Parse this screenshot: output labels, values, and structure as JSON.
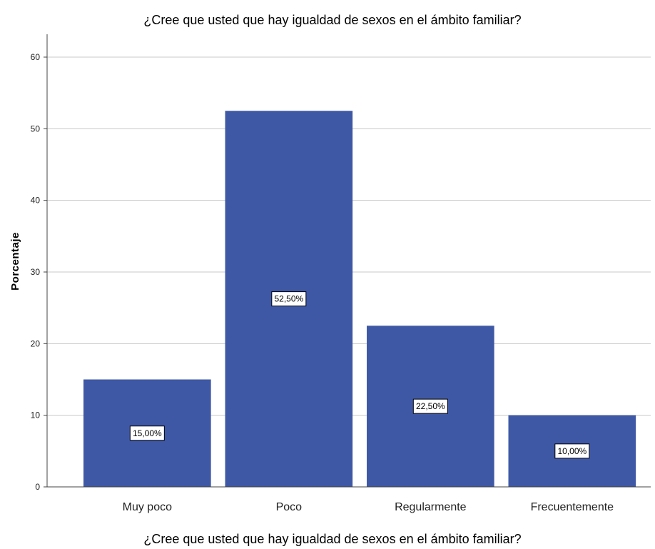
{
  "chart_data": {
    "type": "bar",
    "title": "¿Cree que usted que hay igualdad de sexos en el ámbito familiar?",
    "xlabel": "¿Cree que usted que hay igualdad de sexos en el ámbito familiar?",
    "ylabel": "Porcentaje",
    "categories": [
      "Muy poco",
      "Poco",
      "Regularmente",
      "Frecuentemente"
    ],
    "values": [
      15.0,
      52.5,
      22.5,
      10.0
    ],
    "data_labels": [
      "15,00%",
      "52,50%",
      "22,50%",
      "10,00%"
    ],
    "ylim": [
      0,
      60
    ],
    "yticks": [
      0,
      10,
      20,
      30,
      40,
      50,
      60
    ],
    "grid": true,
    "bar_color": "#3f58a6"
  }
}
